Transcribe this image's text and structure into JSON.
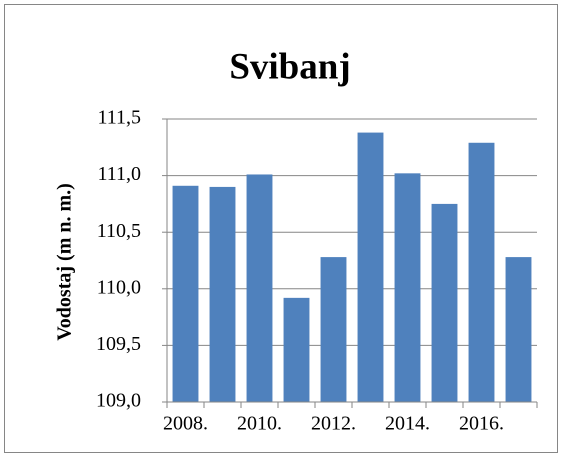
{
  "chart_data": {
    "type": "bar",
    "title": "Svibanj",
    "y_label": "Vodostaj (m n. m.)",
    "categories": [
      "2008.",
      null,
      "2010.",
      null,
      "2012.",
      null,
      "2014.",
      null,
      "2016.",
      null
    ],
    "values": [
      110.91,
      110.9,
      111.01,
      109.92,
      110.28,
      111.38,
      111.02,
      110.75,
      111.29,
      110.28
    ],
    "color": "#4f81bd",
    "ylim": [
      109,
      111.5
    ],
    "yticks": [
      {
        "value": 109,
        "label": "109,0"
      },
      {
        "value": 109.5,
        "label": "109,5"
      },
      {
        "value": 110,
        "label": "110,0"
      },
      {
        "value": 110.5,
        "label": "110,5"
      },
      {
        "value": 111,
        "label": "111,0"
      },
      {
        "value": 111.5,
        "label": "111,5"
      }
    ],
    "grid": true
  }
}
